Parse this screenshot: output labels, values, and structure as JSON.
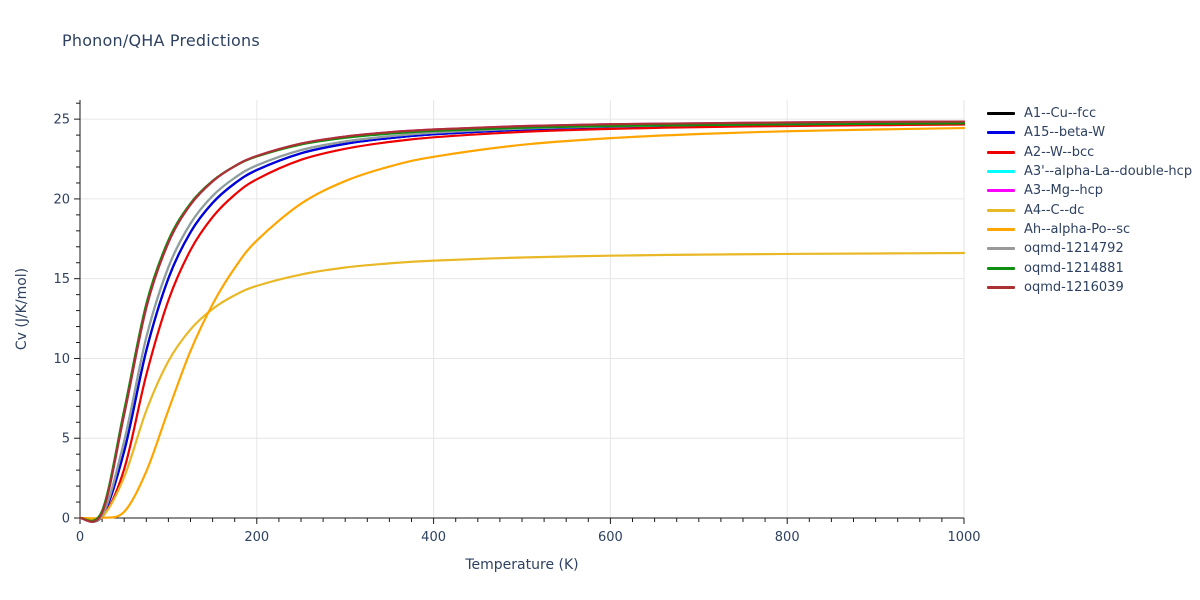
{
  "title": "Phonon/QHA Predictions",
  "theme": {
    "background": "#ffffff",
    "title_color": "#2e4160",
    "tick_color": "#2e4160",
    "legend_text_color": "#2e4160",
    "axis_line_color": "#1a1a1a",
    "grid_color": "#e6e6e6"
  },
  "chart_data": {
    "type": "line",
    "title": "Phonon/QHA Predictions",
    "xlabel": "Temperature (K)",
    "ylabel": "Cv (J/K/mol)",
    "xlim": [
      0,
      1000
    ],
    "ylim": [
      0,
      26.2
    ],
    "x_ticks": [
      0,
      200,
      400,
      600,
      800,
      1000
    ],
    "y_ticks": [
      0,
      5,
      10,
      15,
      20,
      25
    ],
    "x_minor_step": 25,
    "y_minor_step": 1,
    "grid": true,
    "legend_position": "right-outside",
    "x": [
      0,
      25,
      50,
      75,
      100,
      125,
      150,
      175,
      200,
      250,
      300,
      350,
      400,
      500,
      600,
      700,
      800,
      900,
      1000
    ],
    "series": [
      {
        "name": "A1--Cu--fcc",
        "color": "#000000",
        "values": [
          0,
          0.11,
          4.19,
          10.49,
          15.02,
          17.91,
          19.75,
          20.97,
          21.81,
          22.86,
          23.45,
          23.81,
          24.05,
          24.34,
          24.5,
          24.59,
          24.65,
          24.69,
          24.73
        ]
      },
      {
        "name": "A15--beta-W",
        "color": "#0000e5",
        "values": [
          0,
          0.11,
          4.19,
          10.49,
          15.02,
          17.91,
          19.75,
          20.97,
          21.81,
          22.86,
          23.45,
          23.81,
          24.05,
          24.34,
          24.5,
          24.59,
          24.65,
          24.69,
          24.73
        ]
      },
      {
        "name": "A2--W--bcc",
        "color": "#ee0000",
        "values": [
          0,
          0.05,
          3.07,
          8.97,
          13.64,
          16.79,
          18.86,
          20.26,
          21.23,
          22.45,
          23.14,
          23.57,
          23.86,
          24.2,
          24.39,
          24.5,
          24.57,
          24.62,
          24.66
        ]
      },
      {
        "name": "A3'--alpha-La--double-hcp",
        "color": "#00ffff",
        "values": [
          0,
          0.16,
          4.83,
          11.32,
          15.72,
          18.46,
          20.19,
          21.32,
          22.1,
          23.06,
          23.6,
          23.93,
          24.15,
          24.41,
          24.55,
          24.64,
          24.69,
          24.74,
          24.77
        ]
      },
      {
        "name": "A3--Mg--hcp",
        "color": "#ff00ff",
        "values": [
          0,
          0.33,
          6.5,
          13.19,
          17.26,
          19.64,
          21.1,
          22.05,
          22.69,
          23.47,
          23.91,
          24.18,
          24.35,
          24.56,
          24.68,
          24.74,
          24.79,
          24.83,
          24.85
        ]
      },
      {
        "name": "A4--C--dc",
        "color": "#e9b826",
        "values": [
          0,
          0.07,
          2.57,
          6.73,
          9.83,
          11.82,
          13.1,
          13.96,
          14.55,
          15.26,
          15.7,
          15.96,
          16.13,
          16.33,
          16.44,
          16.51,
          16.55,
          16.58,
          16.61
        ]
      },
      {
        "name": "Ah--alpha-Po--sc",
        "color": "#ffa500",
        "values": [
          0,
          0.01,
          0.39,
          2.92,
          6.76,
          10.47,
          13.4,
          15.67,
          17.39,
          19.7,
          21.12,
          22.03,
          22.64,
          23.39,
          23.81,
          24.07,
          24.24,
          24.35,
          24.44
        ]
      },
      {
        "name": "oqmd-1214792",
        "color": "#9a9a9a",
        "values": [
          0,
          0.16,
          4.83,
          11.32,
          15.72,
          18.46,
          20.19,
          21.32,
          22.1,
          23.06,
          23.6,
          23.93,
          24.15,
          24.41,
          24.55,
          24.64,
          24.69,
          24.74,
          24.77
        ]
      },
      {
        "name": "oqmd-1214881",
        "color": "#0f8f0f",
        "values": [
          0,
          0.45,
          6.77,
          13.42,
          17.41,
          19.72,
          21.13,
          22.05,
          22.66,
          23.41,
          23.83,
          24.09,
          24.26,
          24.46,
          24.57,
          24.63,
          24.68,
          24.71,
          24.73
        ]
      },
      {
        "name": "oqmd-1216039",
        "color": "#ab3232",
        "values": [
          0,
          0.33,
          6.5,
          13.19,
          17.26,
          19.64,
          21.1,
          22.05,
          22.69,
          23.47,
          23.91,
          24.18,
          24.35,
          24.56,
          24.68,
          24.74,
          24.79,
          24.83,
          24.85
        ]
      }
    ]
  }
}
